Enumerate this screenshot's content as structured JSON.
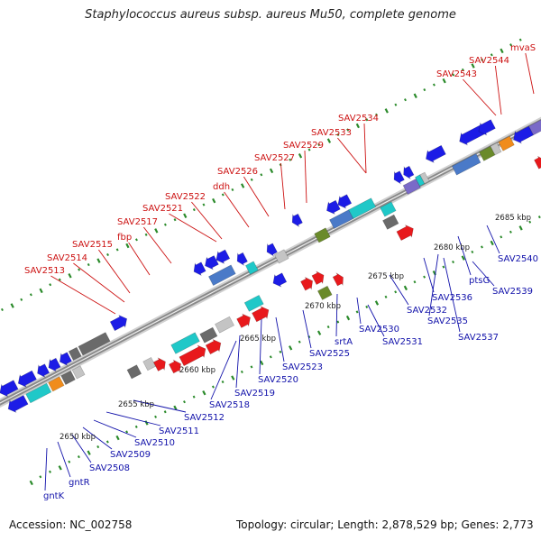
{
  "title": "Staphylococcus aureus subsp. aureus Mu50, complete genome",
  "footer": {
    "accession": "Accession: NC_002758",
    "summary": "Topology: circular; Length: 2,878,529 bp; Genes: 2,773"
  },
  "colors": {
    "forward": "#e8191c",
    "reverse": "#1c1ce6",
    "backbone": "#8a8a8a",
    "tick": "#2a8a2a",
    "top_label": "#cc1111",
    "bottom_label": "#1111aa"
  },
  "scale_labels": [
    "2650 kbp",
    "2655 kbp",
    "2660 kbp",
    "2665 kbp",
    "2670 kbp",
    "2675 kbp",
    "2680 kbp",
    "2685 kbp"
  ],
  "top_labels": [
    "SAV2513",
    "SAV2514",
    "SAV2515",
    "fbp",
    "SAV2517",
    "SAV2521",
    "SAV2522",
    "ddh",
    "SAV2526",
    "SAV2527",
    "SAV2529",
    "SAV2533",
    "SAV2534",
    "SAV2543",
    "SAV2544",
    "mvaS"
  ],
  "bottom_labels": [
    "gntK",
    "gntR",
    "SAV2508",
    "SAV2509",
    "SAV2510",
    "SAV2511",
    "SAV2512",
    "SAV2518",
    "SAV2519",
    "SAV2520",
    "SAV2523",
    "SAV2525",
    "srtA",
    "SAV2530",
    "SAV2531",
    "SAV2532",
    "SAV2535",
    "SAV2536",
    "SAV2537",
    "ptsG",
    "SAV2539",
    "SAV2540"
  ],
  "gene_colors": [
    "#e8191c",
    "#1c1ce6",
    "#20c8c8",
    "#6a6a6a",
    "#c4c4c4",
    "#6a8a2a",
    "#f08c1c",
    "#4a7ac8",
    "#7a6ac8"
  ]
}
